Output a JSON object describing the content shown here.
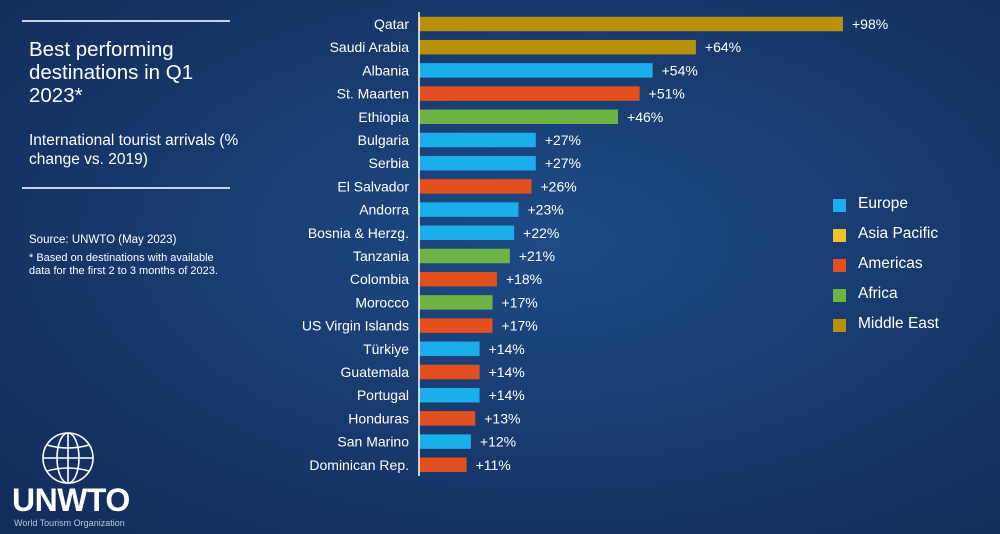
{
  "header": {
    "title": "Best performing destinations in Q1 2023*",
    "subtitle": "International tourist arrivals (% change vs. 2019)",
    "source": "Source: UNWTO (May 2023)",
    "footnote": "* Based on destinations with available data for the first 2 to 3 months of 2023."
  },
  "logo": {
    "wordmark": "UNWTO",
    "tagline": "World Tourism Organization",
    "icon": "globe-icon"
  },
  "colors": {
    "Europe": "#1aaeea",
    "Asia Pacific": "#f2c231",
    "Americas": "#e2501e",
    "Africa": "#6db445",
    "Middle East": "#b8900b"
  },
  "chart_data": {
    "type": "bar",
    "orientation": "horizontal",
    "categories": [
      "Qatar",
      "Saudi Arabia",
      "Albania",
      "St. Maarten",
      "Ethiopia",
      "Bulgaria",
      "Serbia",
      "El Salvador",
      "Andorra",
      "Bosnia & Herzg.",
      "Tanzania",
      "Colombia",
      "Morocco",
      "US Virgin Islands",
      "Türkiye",
      "Guatemala",
      "Portugal",
      "Honduras",
      "San Marino",
      "Dominican Rep."
    ],
    "values": [
      98,
      64,
      54,
      51,
      46,
      27,
      27,
      26,
      23,
      22,
      21,
      18,
      17,
      17,
      14,
      14,
      14,
      13,
      12,
      11
    ],
    "labels": [
      "+98%",
      "+64%",
      "+54%",
      "+51%",
      "+46%",
      "+27%",
      "+27%",
      "+26%",
      "+23%",
      "+22%",
      "+21%",
      "+18%",
      "+17%",
      "+17%",
      "+14%",
      "+14%",
      "+14%",
      "+13%",
      "+12%",
      "+11%"
    ],
    "regions": [
      "Middle East",
      "Middle East",
      "Europe",
      "Americas",
      "Africa",
      "Europe",
      "Europe",
      "Americas",
      "Europe",
      "Europe",
      "Africa",
      "Americas",
      "Africa",
      "Americas",
      "Europe",
      "Americas",
      "Europe",
      "Americas",
      "Europe",
      "Americas"
    ],
    "legend": [
      "Europe",
      "Asia Pacific",
      "Americas",
      "Africa",
      "Middle East"
    ],
    "legend_position": "right",
    "xlim": [
      0,
      100
    ],
    "grid": false
  }
}
